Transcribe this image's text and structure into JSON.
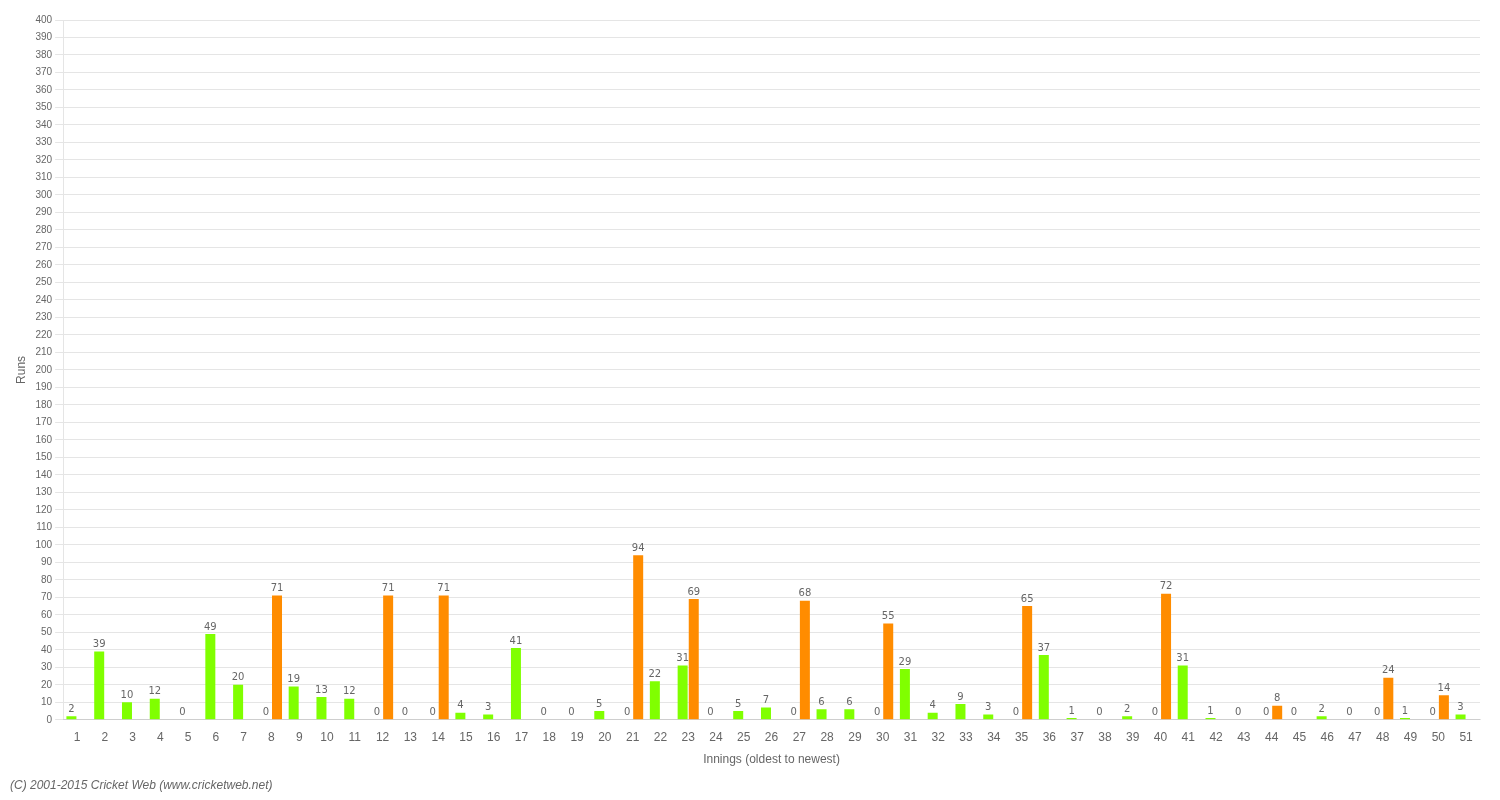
{
  "chart_data": {
    "type": "bar",
    "categories": [
      1,
      2,
      3,
      4,
      5,
      6,
      7,
      8,
      9,
      10,
      11,
      12,
      13,
      14,
      15,
      16,
      17,
      18,
      19,
      20,
      21,
      22,
      23,
      24,
      25,
      26,
      27,
      28,
      29,
      30,
      31,
      32,
      33,
      34,
      35,
      36,
      37,
      38,
      39,
      40,
      41,
      42,
      43,
      44,
      45,
      46,
      47,
      48,
      49,
      50,
      51
    ],
    "series": [
      {
        "color": "#80FF00",
        "values": [
          2,
          39,
          10,
          12,
          0,
          49,
          20,
          0,
          19,
          13,
          12,
          0,
          0,
          0,
          4,
          3,
          41,
          0,
          0,
          5,
          0,
          22,
          31,
          0,
          5,
          7,
          0,
          6,
          6,
          0,
          29,
          4,
          9,
          3,
          0,
          37,
          1,
          0,
          2,
          0,
          31,
          1,
          0,
          0,
          0,
          2,
          0,
          0,
          1,
          0,
          3
        ]
      },
      {
        "color": "#FF8C00",
        "values": [
          null,
          null,
          null,
          null,
          null,
          null,
          null,
          71,
          null,
          null,
          null,
          71,
          null,
          71,
          null,
          null,
          null,
          null,
          null,
          null,
          94,
          null,
          69,
          null,
          null,
          null,
          68,
          null,
          null,
          55,
          null,
          null,
          null,
          null,
          65,
          null,
          null,
          null,
          null,
          72,
          null,
          null,
          null,
          8,
          null,
          null,
          null,
          24,
          null,
          14,
          null
        ]
      }
    ],
    "xlabel": "Innings (oldest to newest)",
    "ylabel": "Runs",
    "ylim": [
      0,
      400
    ],
    "yticks": [
      0,
      10,
      20,
      30,
      40,
      50,
      60,
      70,
      80,
      90,
      100,
      110,
      120,
      130,
      140,
      150,
      160,
      170,
      180,
      190,
      200,
      210,
      220,
      230,
      240,
      250,
      260,
      270,
      280,
      290,
      300,
      310,
      320,
      330,
      340,
      350,
      360,
      370,
      380,
      390,
      400
    ],
    "grid": true,
    "data_labels": true,
    "annotations": [
      "(C) 2001-2015 Cricket Web (www.cricketweb.net)"
    ]
  }
}
